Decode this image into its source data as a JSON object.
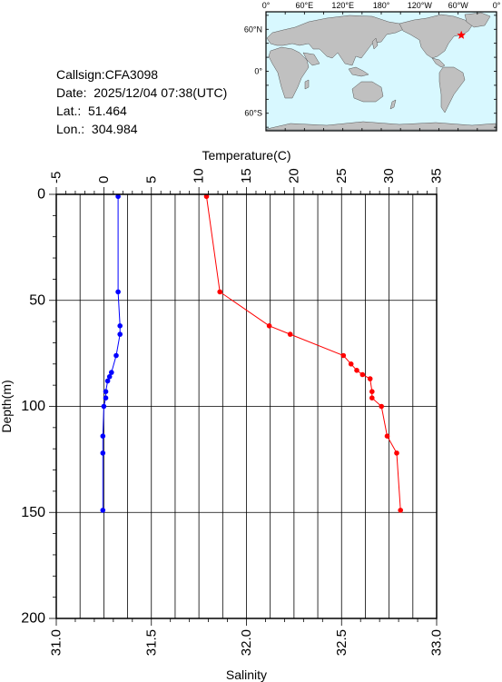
{
  "meta": {
    "callsign": "Callsign:CFA3098",
    "date": "Date:  2025/12/04 07:38(UTC)",
    "lat": "Lat.:  51.464",
    "lon": "Lon.:  304.984"
  },
  "map": {
    "lon_labels": [
      "0°",
      "60°E",
      "120°E",
      "180°",
      "120°W",
      "60°W",
      "0°"
    ],
    "lat_labels": [
      "60°N",
      "0°",
      "60°S"
    ],
    "ocean_color": "#d8f8ff",
    "land_color": "#c0c0c0",
    "marker_color": "#ff0000",
    "marker_lat": 51.464,
    "marker_lon": 304.984
  },
  "chart_data": {
    "type": "line",
    "ylabel": "Depth(m)",
    "xlabel_top": "Temperature(C)",
    "xlabel_bottom": "Salinity",
    "ylim": [
      0,
      200
    ],
    "temperature_lim": [
      -5,
      35
    ],
    "salinity_lim": [
      31.0,
      33.0
    ],
    "y_ticks": [
      "0",
      "50",
      "100",
      "150",
      "200"
    ],
    "temperature_ticks": [
      "-5",
      "0",
      "5",
      "10",
      "15",
      "20",
      "25",
      "30",
      "35"
    ],
    "salinity_ticks": [
      "31.0",
      "31.5",
      "32.0",
      "32.5",
      "33.0"
    ],
    "grid": true,
    "series": [
      {
        "axis": "temperature",
        "color": "#0000ff",
        "points": [
          [
            1.5,
            1
          ],
          [
            1.5,
            46
          ],
          [
            1.7,
            62
          ],
          [
            1.7,
            66
          ],
          [
            1.3,
            76
          ],
          [
            0.8,
            84
          ],
          [
            0.6,
            86
          ],
          [
            0.4,
            88
          ],
          [
            0.2,
            93
          ],
          [
            0.2,
            96
          ],
          [
            0.0,
            100
          ],
          [
            -0.1,
            114
          ],
          [
            -0.1,
            122
          ],
          [
            -0.1,
            149
          ]
        ]
      },
      {
        "axis": "salinity",
        "color": "#ff0000",
        "points": [
          [
            31.79,
            1
          ],
          [
            31.86,
            46
          ],
          [
            32.12,
            62
          ],
          [
            32.23,
            66
          ],
          [
            32.51,
            76
          ],
          [
            32.55,
            80
          ],
          [
            32.58,
            83
          ],
          [
            32.61,
            85
          ],
          [
            32.65,
            87
          ],
          [
            32.66,
            93
          ],
          [
            32.66,
            96
          ],
          [
            32.71,
            100
          ],
          [
            32.74,
            114
          ],
          [
            32.79,
            122
          ],
          [
            32.81,
            149
          ]
        ]
      }
    ]
  }
}
